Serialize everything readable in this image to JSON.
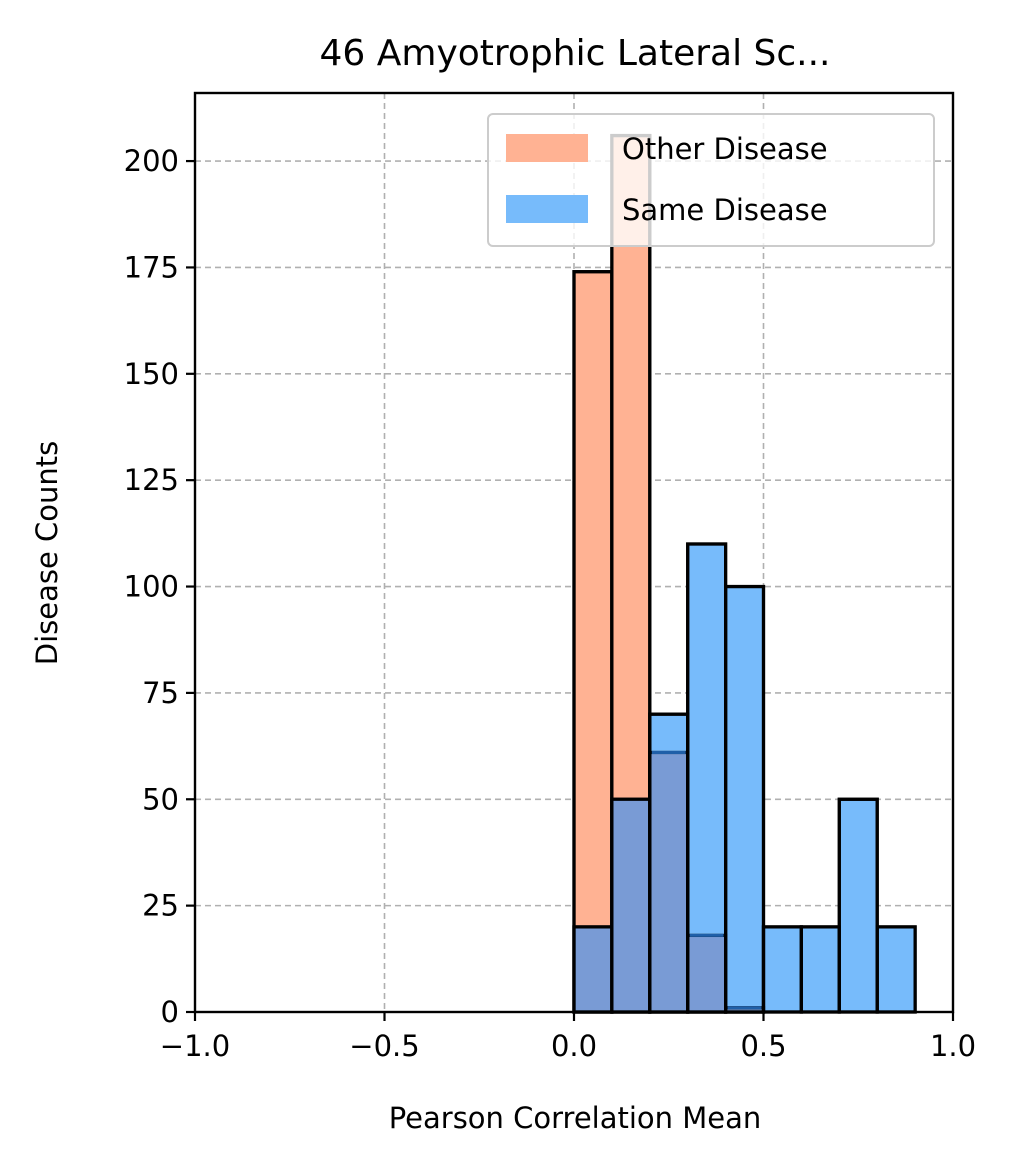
{
  "chart_data": {
    "type": "bar",
    "title": "46 Amyotrophic Lateral Sc...",
    "xlabel": "Pearson Correlation Mean",
    "ylabel": "Disease Counts",
    "xlim": [
      -1.0,
      1.0
    ],
    "ylim": [
      0,
      216
    ],
    "xticks": [
      "−1.0",
      "−0.5",
      "0.0",
      "0.5",
      "1.0"
    ],
    "xtick_values": [
      -1.0,
      -0.5,
      0.0,
      0.5,
      1.0
    ],
    "yticks": [
      "0",
      "25",
      "50",
      "75",
      "100",
      "125",
      "150",
      "175",
      "200"
    ],
    "ytick_values": [
      0,
      25,
      50,
      75,
      100,
      125,
      150,
      175,
      200
    ],
    "grid": true,
    "legend_position": "top-right",
    "bin_edges": [
      0.0,
      0.1,
      0.2,
      0.3,
      0.4,
      0.5,
      0.6,
      0.7,
      0.8,
      0.9
    ],
    "series": [
      {
        "name": "Other Disease",
        "color": "#ffb293",
        "values": [
          174,
          206,
          61,
          18,
          1,
          0,
          0,
          0,
          0
        ]
      },
      {
        "name": "Same Disease",
        "color": "#77bbfb",
        "values": [
          20,
          50,
          70,
          110,
          100,
          20,
          20,
          50,
          20
        ]
      }
    ],
    "overlap_color": "#799bd5"
  }
}
